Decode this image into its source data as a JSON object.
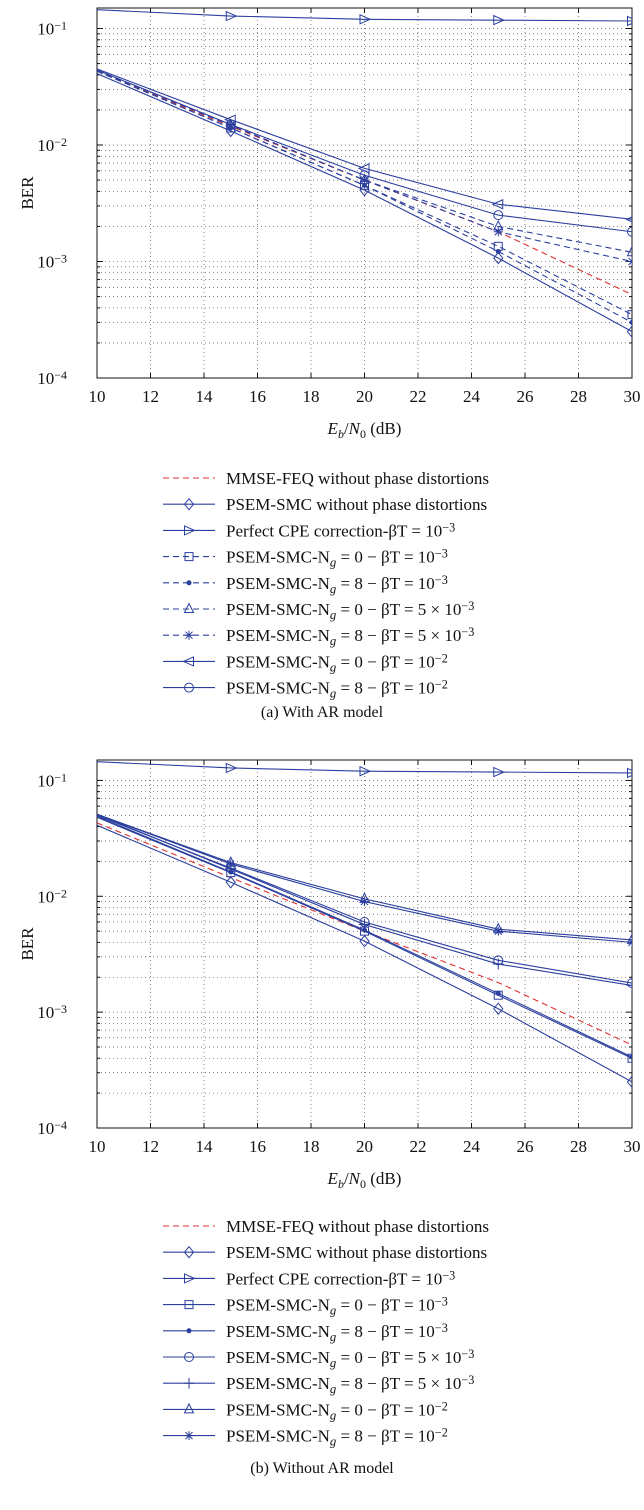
{
  "chart_data": [
    {
      "type": "line",
      "caption": "(a)  With AR model",
      "xlabel": "E_b/N_0 (dB)",
      "ylabel": "BER",
      "xlim": [
        10,
        30
      ],
      "ylim": [
        0.0001,
        0.15
      ],
      "yscale": "log",
      "grid": true,
      "legend_position": "below",
      "x_ticks": [
        "10",
        "12",
        "14",
        "16",
        "18",
        "20",
        "22",
        "24",
        "26",
        "28",
        "30"
      ],
      "y_ticks": [
        {
          "value": 0.1,
          "mantissa": "10",
          "exp": "−1"
        },
        {
          "value": 0.01,
          "mantissa": "10",
          "exp": "−2"
        },
        {
          "value": 0.001,
          "mantissa": "10",
          "exp": "−3"
        },
        {
          "value": 0.0001,
          "mantissa": "10",
          "exp": "−4"
        }
      ],
      "x": [
        10,
        15,
        20,
        25,
        30
      ],
      "series": [
        {
          "label": "MMSE-FEQ without phase distortions",
          "line": "dashed",
          "marker": "none",
          "color": "#e03030",
          "values": [
            0.043,
            0.0145,
            0.005,
            0.0018,
            0.00052
          ]
        },
        {
          "label": "PSEM-SMC without phase distortions",
          "line": "solid",
          "marker": "diamond",
          "color": "#2b3f9e",
          "values": [
            0.041,
            0.0132,
            0.0041,
            0.00107,
            0.00025
          ]
        },
        {
          "label": "Perfect CPE correction-βT = 10⁻³",
          "line": "solid",
          "marker": "triangle-right",
          "color": "#2b3f9e",
          "values": [
            0.145,
            0.128,
            0.12,
            0.118,
            0.116
          ]
        },
        {
          "label": "PSEM-SMC-N_g = 0 − βT = 10⁻³",
          "line": "dashed",
          "marker": "square",
          "color": "#2b3f9e",
          "values": [
            0.043,
            0.014,
            0.0045,
            0.00135,
            0.00035
          ]
        },
        {
          "label": "PSEM-SMC-N_g = 8 − βT = 10⁻³",
          "line": "dashed",
          "marker": "dot",
          "color": "#2b3f9e",
          "values": [
            0.043,
            0.014,
            0.0045,
            0.00122,
            0.0003
          ]
        },
        {
          "label": "PSEM-SMC-N_g = 0 − βT = 5 × 10⁻³",
          "line": "dashed",
          "marker": "triangle-up",
          "color": "#2b3f9e",
          "values": [
            0.044,
            0.0148,
            0.005,
            0.002,
            0.0012
          ]
        },
        {
          "label": "PSEM-SMC-N_g = 8 − βT = 5 × 10⁻³",
          "line": "dashed",
          "marker": "star",
          "color": "#2b3f9e",
          "values": [
            0.044,
            0.0148,
            0.005,
            0.0018,
            0.001
          ]
        },
        {
          "label": "PSEM-SMC-N_g = 0 − βT = 10⁻²",
          "line": "solid",
          "marker": "triangle-left",
          "color": "#2b3f9e",
          "values": [
            0.045,
            0.0165,
            0.0063,
            0.0031,
            0.0023
          ]
        },
        {
          "label": "PSEM-SMC-N_g = 8 − βT = 10⁻²",
          "line": "solid",
          "marker": "circle",
          "color": "#2b3f9e",
          "values": [
            0.044,
            0.015,
            0.0055,
            0.0025,
            0.0018
          ]
        }
      ]
    },
    {
      "type": "line",
      "caption": "(b)  Without AR model",
      "xlabel": "E_b/N_0 (dB)",
      "ylabel": "BER",
      "xlim": [
        10,
        30
      ],
      "ylim": [
        0.0001,
        0.15
      ],
      "yscale": "log",
      "grid": true,
      "legend_position": "below",
      "x_ticks": [
        "10",
        "12",
        "14",
        "16",
        "18",
        "20",
        "22",
        "24",
        "26",
        "28",
        "30"
      ],
      "y_ticks": [
        {
          "value": 0.1,
          "mantissa": "10",
          "exp": "−1"
        },
        {
          "value": 0.01,
          "mantissa": "10",
          "exp": "−2"
        },
        {
          "value": 0.001,
          "mantissa": "10",
          "exp": "−3"
        },
        {
          "value": 0.0001,
          "mantissa": "10",
          "exp": "−4"
        }
      ],
      "x": [
        10,
        15,
        20,
        25,
        30
      ],
      "series": [
        {
          "label": "MMSE-FEQ without phase distortions",
          "line": "dashed",
          "marker": "none",
          "color": "#e03030",
          "values": [
            0.043,
            0.0145,
            0.005,
            0.0018,
            0.00052
          ]
        },
        {
          "label": "PSEM-SMC without phase distortions",
          "line": "solid",
          "marker": "diamond",
          "color": "#2b3f9e",
          "values": [
            0.041,
            0.0132,
            0.0041,
            0.00107,
            0.00025
          ]
        },
        {
          "label": "Perfect CPE correction-βT = 10⁻³",
          "line": "solid",
          "marker": "triangle-right",
          "color": "#2b3f9e",
          "values": [
            0.145,
            0.128,
            0.12,
            0.118,
            0.116
          ]
        },
        {
          "label": "PSEM-SMC-N_g = 0 − βT = 10⁻³",
          "line": "solid",
          "marker": "square",
          "color": "#2b3f9e",
          "values": [
            0.048,
            0.016,
            0.005,
            0.0014,
            0.0004
          ]
        },
        {
          "label": "PSEM-SMC-N_g = 8 − βT = 10⁻³",
          "line": "solid",
          "marker": "dot",
          "color": "#2b3f9e",
          "values": [
            0.049,
            0.0162,
            0.0051,
            0.00145,
            0.00041
          ]
        },
        {
          "label": "PSEM-SMC-N_g = 0 − βT = 5 × 10⁻³",
          "line": "solid",
          "marker": "circle",
          "color": "#2b3f9e",
          "values": [
            0.05,
            0.0175,
            0.006,
            0.0028,
            0.00178
          ]
        },
        {
          "label": "PSEM-SMC-N_g = 8 − βT = 5 × 10⁻³",
          "line": "solid",
          "marker": "plus",
          "color": "#2b3f9e",
          "values": [
            0.051,
            0.0172,
            0.0057,
            0.0026,
            0.0017
          ]
        },
        {
          "label": "PSEM-SMC-N_g = 0 − βT = 10⁻²",
          "line": "solid",
          "marker": "triangle-up",
          "color": "#2b3f9e",
          "values": [
            0.051,
            0.0195,
            0.0095,
            0.0052,
            0.0042
          ]
        },
        {
          "label": "PSEM-SMC-N_g = 8 − βT = 10⁻²",
          "line": "solid",
          "marker": "star",
          "color": "#2b3f9e",
          "values": [
            0.051,
            0.019,
            0.009,
            0.005,
            0.004
          ]
        }
      ]
    }
  ]
}
